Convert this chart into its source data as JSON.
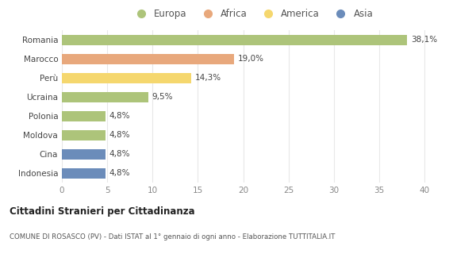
{
  "categories": [
    "Romania",
    "Marocco",
    "Perù",
    "Ucraina",
    "Polonia",
    "Moldova",
    "Cina",
    "Indonesia"
  ],
  "values": [
    38.1,
    19.0,
    14.3,
    9.5,
    4.8,
    4.8,
    4.8,
    4.8
  ],
  "labels": [
    "38,1%",
    "19,0%",
    "14,3%",
    "9,5%",
    "4,8%",
    "4,8%",
    "4,8%",
    "4,8%"
  ],
  "colors": [
    "#adc47a",
    "#e8a87c",
    "#f5d76e",
    "#adc47a",
    "#adc47a",
    "#adc47a",
    "#6b8cba",
    "#6b8cba"
  ],
  "legend_entries": [
    {
      "label": "Europa",
      "color": "#adc47a"
    },
    {
      "label": "Africa",
      "color": "#e8a87c"
    },
    {
      "label": "America",
      "color": "#f5d76e"
    },
    {
      "label": "Asia",
      "color": "#6b8cba"
    }
  ],
  "xlim": [
    0,
    42
  ],
  "xticks": [
    0,
    5,
    10,
    15,
    20,
    25,
    30,
    35,
    40
  ],
  "title_bold": "Cittadini Stranieri per Cittadinanza",
  "subtitle": "COMUNE DI ROSASCO (PV) - Dati ISTAT al 1° gennaio di ogni anno - Elaborazione TUTTITALIA.IT",
  "background_color": "#ffffff",
  "grid_color": "#e8e8e8",
  "bar_height": 0.55,
  "label_fontsize": 7.5,
  "ytick_fontsize": 7.5,
  "xtick_fontsize": 7.5
}
